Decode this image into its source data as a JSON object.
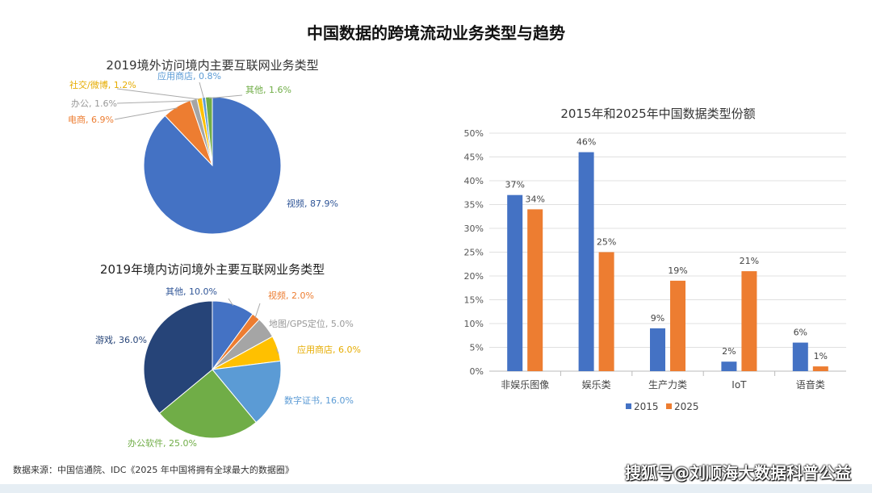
{
  "page_title": "中国数据的跨境流动业务类型与趋势",
  "source": "数据来源：中国信通院、IDC《2025 年中国将拥有全球最大的数据圈》",
  "watermark": "搜狐号@刘顺海大数据科普公益",
  "chart_data": [
    {
      "type": "pie",
      "title": "2019境外访问境内主要互联网业务类型",
      "slices": [
        {
          "label": "视频, 87.9%",
          "name": "视频",
          "value": 87.9,
          "color": "#4472c4",
          "lc": "#2f5597"
        },
        {
          "label": "电商, 6.9%",
          "name": "电商",
          "value": 6.9,
          "color": "#ed7d31",
          "lc": "#ed7d31"
        },
        {
          "label": "办公, 1.6%",
          "name": "办公",
          "value": 1.6,
          "color": "#a5a5a5",
          "lc": "#999999"
        },
        {
          "label": "社交/微博, 1.2%",
          "name": "社交/微博",
          "value": 1.2,
          "color": "#ffc000",
          "lc": "#e6ac00"
        },
        {
          "label": "应用商店, 0.8%",
          "name": "应用商店",
          "value": 0.8,
          "color": "#5b9bd5",
          "lc": "#5b9bd5"
        },
        {
          "label": "其他, 1.6%",
          "name": "其他",
          "value": 1.6,
          "color": "#70ad47",
          "lc": "#70ad47"
        }
      ]
    },
    {
      "type": "pie",
      "title": "2019年境内访问境外主要互联网业务类型",
      "slices": [
        {
          "label": "其他, 10.0%",
          "name": "其他",
          "value": 10,
          "color": "#4472c4",
          "lc": "#2f5597"
        },
        {
          "label": "视频, 2.0%",
          "name": "视频",
          "value": 2,
          "color": "#ed7d31",
          "lc": "#ed7d31"
        },
        {
          "label": "地图/GPS定位, 5.0%",
          "name": "地图/GPS定位",
          "value": 5,
          "color": "#a5a5a5",
          "lc": "#999999"
        },
        {
          "label": "应用商店, 6.0%",
          "name": "应用商店",
          "value": 6,
          "color": "#ffc000",
          "lc": "#e6ac00"
        },
        {
          "label": "数字证书, 16.0%",
          "name": "数字证书",
          "value": 16,
          "color": "#5b9bd5",
          "lc": "#5b9bd5"
        },
        {
          "label": "办公软件, 25.0%",
          "name": "办公软件",
          "value": 25,
          "color": "#70ad47",
          "lc": "#70ad47"
        },
        {
          "label": "游戏, 36.0%",
          "name": "游戏",
          "value": 36,
          "color": "#264478",
          "lc": "#264478"
        }
      ]
    },
    {
      "type": "bar",
      "title": "2015年和2025年中国数据类型份额",
      "categories": [
        "非娱乐图像",
        "娱乐类",
        "生产力类",
        "IoT",
        "语音类"
      ],
      "series": [
        {
          "name": "2015",
          "values": [
            37,
            46,
            9,
            2,
            6
          ],
          "color": "#4472c4"
        },
        {
          "name": "2025",
          "values": [
            34,
            25,
            19,
            21,
            1
          ],
          "color": "#ed7d31"
        }
      ],
      "ylim": [
        0,
        50
      ],
      "yticks": [
        "0%",
        "5%",
        "10%",
        "15%",
        "20%",
        "25%",
        "30%",
        "35%",
        "40%",
        "45%",
        "50%"
      ],
      "value_labels": [
        [
          "37%",
          "46%",
          "9%",
          "2%",
          "6%"
        ],
        [
          "34%",
          "25%",
          "19%",
          "21%",
          "1%"
        ]
      ],
      "legend": "bottom",
      "grid": true
    }
  ]
}
